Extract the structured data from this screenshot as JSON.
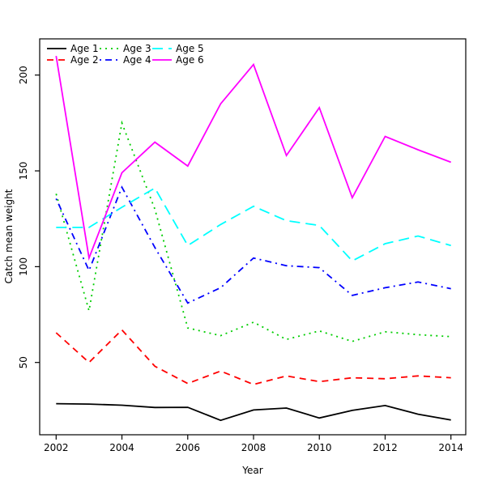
{
  "chart_data": {
    "type": "line",
    "title": "",
    "xlabel": "Year",
    "ylabel": "Catch mean weight",
    "x": [
      2002,
      2003,
      2004,
      2005,
      2006,
      2007,
      2008,
      2009,
      2010,
      2011,
      2012,
      2013,
      2014
    ],
    "xticks": [
      2002,
      2004,
      2006,
      2008,
      2010,
      2012,
      2014
    ],
    "yticks": [
      50,
      100,
      150,
      200
    ],
    "xlim": [
      2001.5,
      2014.5
    ],
    "ylim": [
      12,
      219
    ],
    "grid": false,
    "legend_position": "top-left",
    "legend_rows": 2,
    "legend_cols": 3,
    "legend_display_order": [
      "Age 1",
      "Age 3",
      "Age 5",
      "Age 2",
      "Age 4",
      "Age 6"
    ],
    "series": [
      {
        "name": "Age 1",
        "color": "#000000",
        "dash": "solid",
        "values": [
          28.5,
          28.3,
          27.7,
          26.5,
          26.6,
          19.8,
          25.2,
          26.2,
          21,
          25,
          27.5,
          23,
          20
        ]
      },
      {
        "name": "Age 2",
        "color": "#FF0000",
        "dash": "dashed",
        "values": [
          65.5,
          50,
          67,
          48,
          39,
          45.5,
          38.5,
          43,
          40,
          42,
          41.5,
          43,
          42
        ]
      },
      {
        "name": "Age 3",
        "color": "#00CD00",
        "dash": "dotted",
        "values": [
          138,
          77,
          175,
          130,
          68,
          64,
          71,
          62,
          66.5,
          61,
          66,
          64.5,
          63.5
        ]
      },
      {
        "name": "Age 4",
        "color": "#0000FF",
        "dash": "dashdot",
        "values": [
          135.5,
          98,
          141.5,
          110,
          81,
          89,
          104.5,
          100.5,
          99.5,
          85,
          89,
          92,
          88.5
        ]
      },
      {
        "name": "Age 5",
        "color": "#00FFFF",
        "dash": "longdash",
        "values": [
          120.5,
          120.5,
          131,
          141,
          111,
          122,
          131.5,
          124,
          121.5,
          103,
          112,
          116,
          111
        ]
      },
      {
        "name": "Age 6",
        "color": "#FF00FF",
        "dash": "solid",
        "values": [
          210,
          104.5,
          149,
          165,
          152.5,
          185,
          205.5,
          158,
          183,
          136,
          168,
          161,
          154.5
        ]
      }
    ]
  }
}
